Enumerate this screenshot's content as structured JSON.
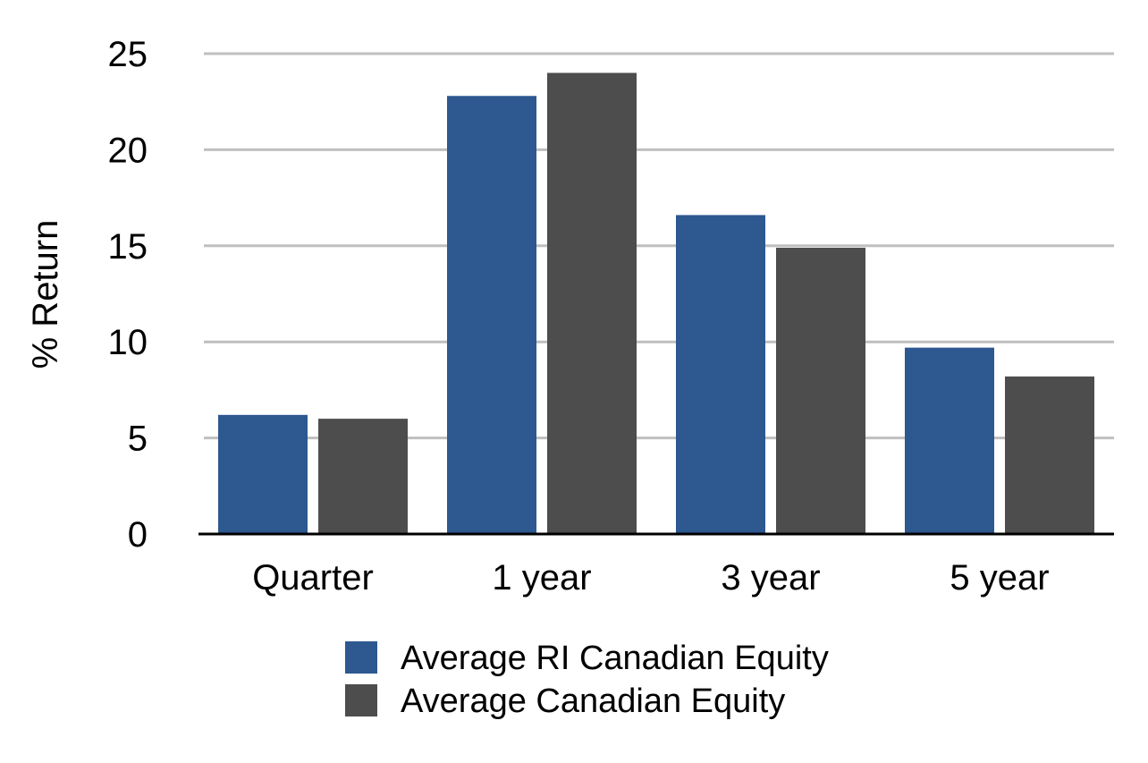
{
  "chart_data": {
    "type": "bar",
    "title": "",
    "xlabel": "",
    "ylabel": "% Return",
    "ylim": [
      0,
      25
    ],
    "yticks": [
      0,
      5,
      10,
      15,
      20,
      25
    ],
    "grid": true,
    "legend_position": "bottom",
    "categories": [
      "Quarter",
      "1 year",
      "3 year",
      "5 year"
    ],
    "series": [
      {
        "name": "Average RI Canadian Equity",
        "color": "#2d5890",
        "values": [
          6.2,
          22.8,
          16.6,
          9.7
        ]
      },
      {
        "name": "Average Canadian Equity",
        "color": "#4d4d4d",
        "values": [
          6.0,
          24.0,
          14.9,
          8.2
        ]
      }
    ]
  }
}
